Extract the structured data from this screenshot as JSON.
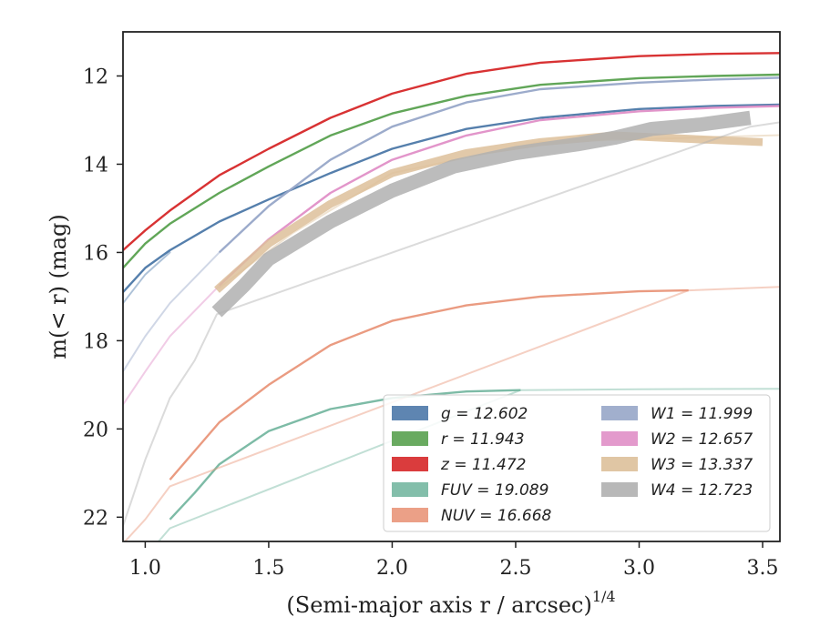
{
  "chart_data": {
    "type": "line",
    "xlabel": "(Semi-major axis r / arcsec)",
    "xlabel_sup": "1/4",
    "ylabel": "m(< r) (mag)",
    "xlim": [
      0.91,
      3.57
    ],
    "ylim": [
      22.55,
      11.0
    ],
    "x_inverted": false,
    "y_inverted": true,
    "x_ticks": [
      1.0,
      1.5,
      2.0,
      2.5,
      3.0,
      3.5
    ],
    "x_tick_labels": [
      "1.0",
      "1.5",
      "2.0",
      "2.5",
      "3.0",
      "3.5"
    ],
    "y_ticks": [
      12,
      14,
      16,
      18,
      20,
      22
    ],
    "y_tick_labels": [
      "12",
      "14",
      "16",
      "18",
      "20",
      "22"
    ],
    "legend_position": "lower-right",
    "legend_columns": 2,
    "series": [
      {
        "name": "g = 12.602",
        "color": "#4c78a8",
        "band": false,
        "points": [
          [
            0.91,
            16.9
          ],
          [
            1.0,
            16.35
          ],
          [
            1.1,
            15.95
          ],
          [
            1.3,
            15.3
          ],
          [
            1.5,
            14.8
          ],
          [
            1.75,
            14.2
          ],
          [
            2.0,
            13.65
          ],
          [
            2.3,
            13.2
          ],
          [
            2.6,
            12.95
          ],
          [
            3.0,
            12.75
          ],
          [
            3.3,
            12.68
          ],
          [
            3.57,
            12.65
          ]
        ],
        "faint_points": [
          [
            0.91,
            17.15
          ],
          [
            1.0,
            16.5
          ],
          [
            1.1,
            16.0
          ]
        ]
      },
      {
        "name": "r = 11.943",
        "color": "#59a14f",
        "band": false,
        "points": [
          [
            0.91,
            16.35
          ],
          [
            1.0,
            15.8
          ],
          [
            1.1,
            15.35
          ],
          [
            1.3,
            14.65
          ],
          [
            1.5,
            14.05
          ],
          [
            1.75,
            13.35
          ],
          [
            2.0,
            12.85
          ],
          [
            2.3,
            12.45
          ],
          [
            2.6,
            12.2
          ],
          [
            3.0,
            12.05
          ],
          [
            3.3,
            12.0
          ],
          [
            3.57,
            11.97
          ]
        ],
        "faint_points": []
      },
      {
        "name": "z = 11.472",
        "color": "#d62728",
        "band": false,
        "points": [
          [
            0.91,
            15.95
          ],
          [
            1.0,
            15.5
          ],
          [
            1.1,
            15.05
          ],
          [
            1.3,
            14.25
          ],
          [
            1.5,
            13.65
          ],
          [
            1.75,
            12.95
          ],
          [
            2.0,
            12.4
          ],
          [
            2.3,
            11.95
          ],
          [
            2.6,
            11.7
          ],
          [
            3.0,
            11.55
          ],
          [
            3.3,
            11.5
          ],
          [
            3.57,
            11.48
          ]
        ],
        "faint_points": []
      },
      {
        "name": "FUV = 19.089",
        "color": "#76b7a1",
        "band": false,
        "points": [
          [
            1.1,
            22.05
          ],
          [
            1.2,
            21.45
          ],
          [
            1.3,
            20.8
          ],
          [
            1.5,
            20.05
          ],
          [
            1.75,
            19.55
          ],
          [
            2.0,
            19.3
          ],
          [
            2.3,
            19.15
          ],
          [
            2.52,
            19.12
          ]
        ],
        "faint_points": [
          [
            0.91,
            23.3
          ],
          [
            1.0,
            22.9
          ],
          [
            1.1,
            22.25
          ],
          [
            2.52,
            19.12
          ],
          [
            3.0,
            19.1
          ],
          [
            3.57,
            19.09
          ]
        ]
      },
      {
        "name": "NUV = 16.668",
        "color": "#e9967a",
        "band": false,
        "points": [
          [
            1.1,
            21.15
          ],
          [
            1.2,
            20.5
          ],
          [
            1.3,
            19.85
          ],
          [
            1.5,
            19.0
          ],
          [
            1.75,
            18.1
          ],
          [
            2.0,
            17.55
          ],
          [
            2.3,
            17.2
          ],
          [
            2.6,
            17.0
          ],
          [
            3.0,
            16.88
          ],
          [
            3.2,
            16.86
          ]
        ],
        "faint_points": [
          [
            0.91,
            22.6
          ],
          [
            1.0,
            22.05
          ],
          [
            1.1,
            21.3
          ],
          [
            3.2,
            16.86
          ],
          [
            3.57,
            16.78
          ]
        ]
      },
      {
        "name": "W1 = 11.999",
        "color": "#97a6c8",
        "band": false,
        "points": [
          [
            1.3,
            16.0
          ],
          [
            1.5,
            14.95
          ],
          [
            1.75,
            13.9
          ],
          [
            2.0,
            13.15
          ],
          [
            2.3,
            12.6
          ],
          [
            2.6,
            12.3
          ],
          [
            3.0,
            12.15
          ],
          [
            3.3,
            12.08
          ],
          [
            3.57,
            12.04
          ]
        ],
        "faint_points": [
          [
            0.91,
            18.7
          ],
          [
            1.0,
            17.9
          ],
          [
            1.1,
            17.15
          ],
          [
            1.3,
            16.0
          ]
        ]
      },
      {
        "name": "W2 = 12.657",
        "color": "#e08fc7",
        "band": false,
        "points": [
          [
            1.3,
            16.75
          ],
          [
            1.5,
            15.7
          ],
          [
            1.75,
            14.65
          ],
          [
            2.0,
            13.9
          ],
          [
            2.3,
            13.35
          ],
          [
            2.6,
            13.0
          ],
          [
            3.0,
            12.8
          ],
          [
            3.3,
            12.72
          ],
          [
            3.57,
            12.68
          ]
        ],
        "faint_points": [
          [
            0.91,
            19.45
          ],
          [
            1.0,
            18.7
          ],
          [
            1.1,
            17.9
          ],
          [
            1.3,
            16.75
          ]
        ]
      },
      {
        "name": "W3 = 13.337",
        "color": "#ddc09a",
        "band": true,
        "band_width": 0.18,
        "points": [
          [
            1.29,
            16.85
          ],
          [
            1.5,
            15.8
          ],
          [
            1.75,
            14.9
          ],
          [
            2.0,
            14.2
          ],
          [
            2.3,
            13.75
          ],
          [
            2.6,
            13.5
          ],
          [
            2.9,
            13.35
          ],
          [
            3.1,
            13.4
          ],
          [
            3.3,
            13.45
          ],
          [
            3.5,
            13.5
          ]
        ],
        "faint_points": [
          [
            1.3,
            16.8
          ],
          [
            1.6,
            15.55
          ],
          [
            2.0,
            14.2
          ],
          [
            2.6,
            13.5
          ],
          [
            3.57,
            13.34
          ]
        ]
      },
      {
        "name": "W4 = 12.723",
        "color": "#b0b0b0",
        "band": true,
        "band_width": 0.32,
        "points": [
          [
            1.29,
            17.35
          ],
          [
            1.4,
            16.75
          ],
          [
            1.5,
            16.15
          ],
          [
            1.75,
            15.3
          ],
          [
            2.0,
            14.6
          ],
          [
            2.25,
            14.05
          ],
          [
            2.5,
            13.75
          ],
          [
            2.75,
            13.55
          ],
          [
            2.9,
            13.4
          ],
          [
            3.05,
            13.2
          ],
          [
            3.25,
            13.1
          ],
          [
            3.45,
            12.95
          ]
        ],
        "faint_points": [
          [
            0.91,
            22.2
          ],
          [
            1.0,
            20.7
          ],
          [
            1.1,
            19.3
          ],
          [
            1.2,
            18.45
          ],
          [
            1.29,
            17.4
          ],
          [
            3.45,
            13.15
          ],
          [
            3.57,
            13.05
          ]
        ]
      }
    ]
  }
}
